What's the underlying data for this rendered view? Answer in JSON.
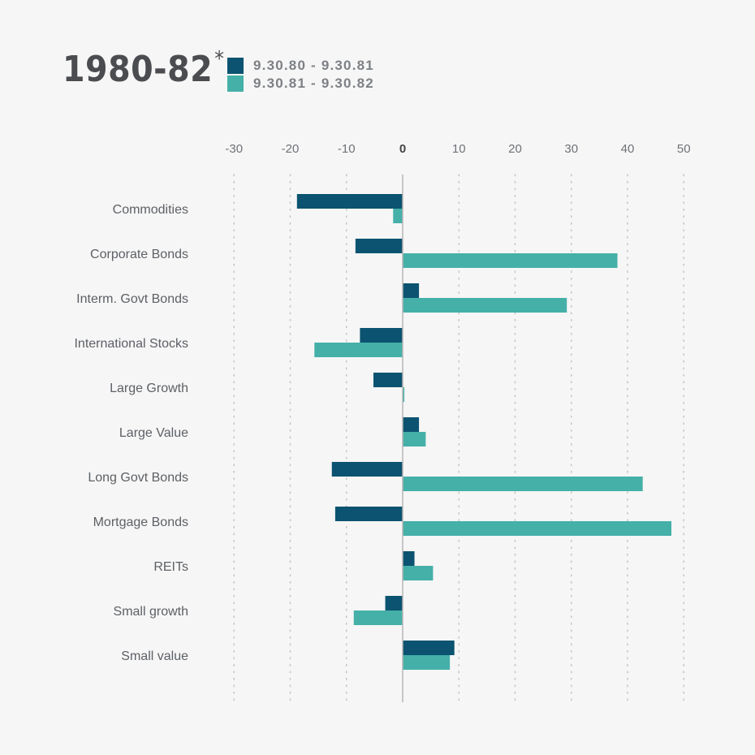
{
  "header": {
    "title": "1980-82",
    "title_mark": "*"
  },
  "legend": [
    {
      "label": "9.30.80 - 9.30.81",
      "color": "#0b5370"
    },
    {
      "label": "9.30.81 - 9.30.82",
      "color": "#45b0a8"
    }
  ],
  "chart_data": {
    "type": "bar",
    "orientation": "horizontal",
    "categories": [
      "Commodities",
      "Corporate Bonds",
      "Interm. Govt Bonds",
      "International Stocks",
      "Large Growth",
      "Large Value",
      "Long Govt Bonds",
      "Mortgage Bonds",
      "REITs",
      "Small growth",
      "Small value"
    ],
    "series": [
      {
        "name": "9.30.80 - 9.30.81",
        "color": "#0b5370",
        "values": [
          -18.8,
          -8.4,
          2.9,
          -7.6,
          -5.2,
          2.9,
          -12.6,
          -12.0,
          2.1,
          -3.1,
          9.2
        ]
      },
      {
        "name": "9.30.81 - 9.30.82",
        "color": "#45b0a8",
        "values": [
          -1.7,
          38.2,
          29.2,
          -15.7,
          0.3,
          4.1,
          42.7,
          47.8,
          5.4,
          -8.7,
          8.4
        ]
      }
    ],
    "xlim": [
      -30,
      50
    ],
    "xticks": [
      "-30",
      "-20",
      "-10",
      "0",
      "10",
      "20",
      "30",
      "40",
      "50"
    ],
    "grid": true,
    "legend_position": "top-left"
  }
}
